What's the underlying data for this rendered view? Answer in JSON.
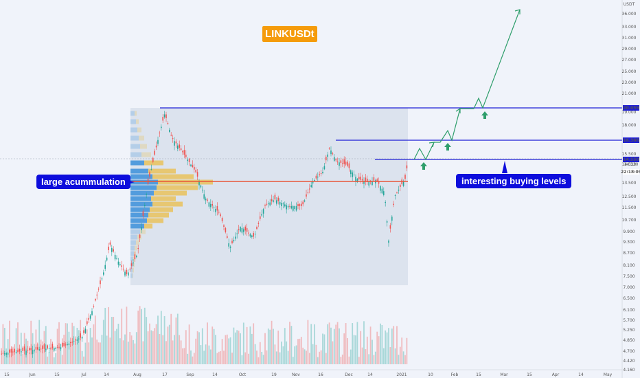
{
  "title": "LINKUSDt",
  "annotations": {
    "left_label": "large acummulation",
    "right_label": "interesting buying levels"
  },
  "price_axis": {
    "currency": "USDT",
    "ticks": [
      "36.000",
      "33.000",
      "31.000",
      "29.000",
      "27.000",
      "25.000",
      "23.000",
      "21.000",
      "19.000",
      "18.000",
      "15.500",
      "14.520",
      "13.500",
      "12.500",
      "11.500",
      "10.700",
      "9.900",
      "9.300",
      "8.700",
      "8.100",
      "7.500",
      "7.000",
      "6.500",
      "6.100",
      "5.700",
      "5.250",
      "4.850",
      "4.700",
      "4.420",
      "4.160"
    ],
    "tags": [
      {
        "label": "20.059",
        "color": "#1e1ed6"
      },
      {
        "label": "16.366",
        "color": "#1e1ed6"
      },
      {
        "label": "14.550",
        "color": "#1e1ed6"
      },
      {
        "label": "22:18:09",
        "color": "#ffffff"
      }
    ]
  },
  "time_axis": {
    "ticks": [
      "15",
      "Jun",
      "15",
      "Jul",
      "14",
      "Aug",
      "17",
      "Sep",
      "14",
      "Oct",
      "19",
      "Nov",
      "16",
      "Dec",
      "14",
      "2021",
      "10",
      "Feb",
      "15",
      "Mar",
      "15",
      "Apr",
      "14",
      "May"
    ]
  },
  "chart_data": {
    "type": "candlestick",
    "title": "LINKUSDt",
    "resistance_levels": [
      20.059,
      16.366,
      14.55
    ],
    "accumulation_level": 12.7,
    "price_range_shown": [
      4.0,
      36.0
    ],
    "volume_profile": "high volume node around 12.5-13.0",
    "projection": "zigzag advance from 14.55 through 16.37 and 20.06 toward ~36",
    "buy_markers": 3
  },
  "colors": {
    "background": "#f0f3fa",
    "up_candle": "#26a69a",
    "down_candle": "#ef5350",
    "level_line": "#1e1ed6",
    "accumulation_line": "#e8573a",
    "projection": "#2e9e6b",
    "profile_blue": "#3b8fd9",
    "profile_gold": "#e9c25c",
    "title_badge": "#f59b0b",
    "callout": "#0d0ddc"
  }
}
